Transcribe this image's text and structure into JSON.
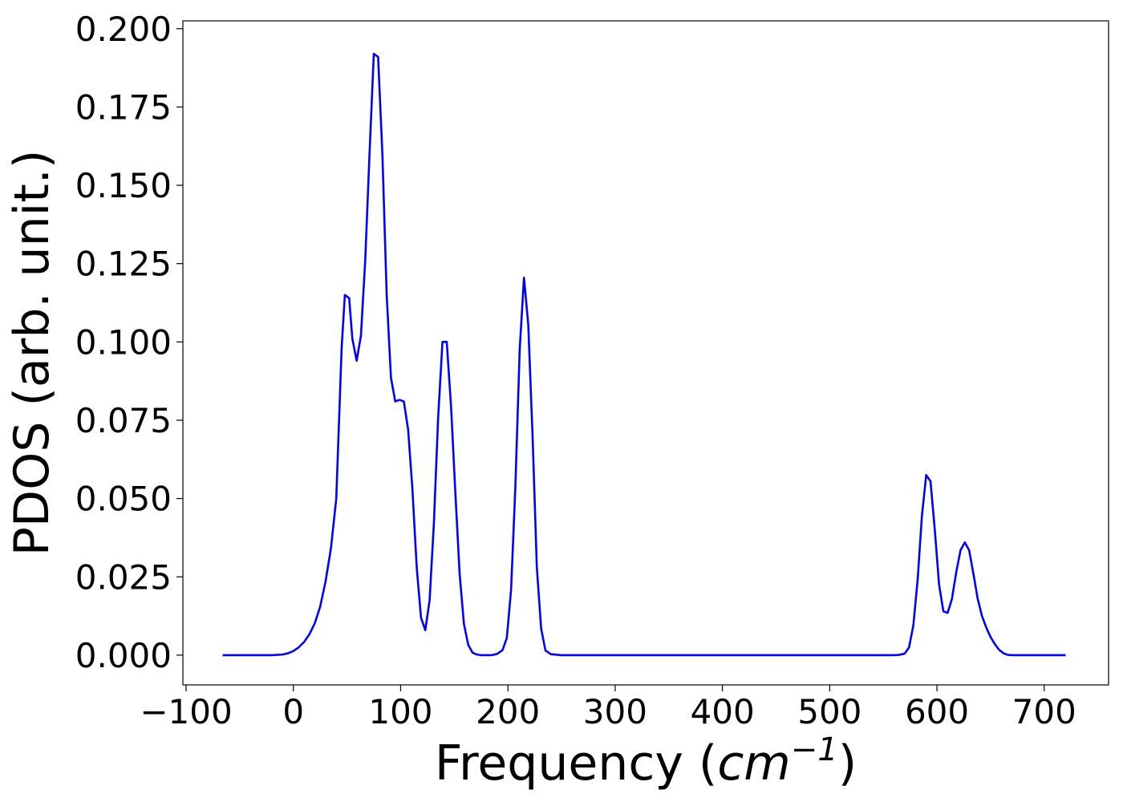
{
  "chart_data": {
    "type": "line",
    "title": "",
    "xlabel": "Frequency",
    "xlabel_unit_base": "cm",
    "xlabel_unit_exp": "−1",
    "ylabel": "PDOS (arb. unit.)",
    "xlim": [
      -103,
      760
    ],
    "ylim": [
      -0.0095,
      0.2025
    ],
    "xticks": [
      -100,
      0,
      100,
      200,
      300,
      400,
      500,
      600,
      700
    ],
    "xtick_labels": [
      "−100",
      "0",
      "100",
      "200",
      "300",
      "400",
      "500",
      "600",
      "700"
    ],
    "yticks": [
      0.0,
      0.025,
      0.05,
      0.075,
      0.1,
      0.125,
      0.15,
      0.175,
      0.2
    ],
    "ytick_labels": [
      "0.000",
      "0.025",
      "0.050",
      "0.075",
      "0.100",
      "0.125",
      "0.150",
      "0.175",
      "0.200"
    ],
    "grid": false,
    "legend": "none",
    "colors": {
      "line": "#0000ff",
      "axes": "#000000",
      "background": "#ffffff"
    },
    "series": [
      {
        "x": [
          -66,
          -40,
          -20,
          -10,
          -5,
          0,
          5,
          10,
          15,
          20,
          25,
          30,
          35,
          40,
          45,
          48,
          52,
          55,
          59,
          63,
          67,
          71,
          75,
          79,
          83,
          87,
          91,
          95,
          99,
          103,
          107,
          111,
          115,
          119,
          123,
          127,
          131,
          135,
          139,
          143,
          147,
          151,
          155,
          159,
          163,
          167,
          171,
          175,
          180,
          185,
          190,
          195,
          199,
          203,
          207,
          211,
          215,
          219,
          223,
          227,
          231,
          235,
          240,
          250,
          300,
          400,
          500,
          560,
          565,
          570,
          574,
          578,
          582,
          586,
          590,
          594,
          598,
          602,
          606,
          610,
          614,
          618,
          622,
          626,
          630,
          634,
          638,
          642,
          646,
          650,
          654,
          658,
          662,
          666,
          670,
          680,
          720
        ],
        "y": [
          0.0,
          0.0,
          0.0,
          0.0002,
          0.0006,
          0.0013,
          0.0025,
          0.0042,
          0.0067,
          0.0102,
          0.0155,
          0.0235,
          0.034,
          0.05,
          0.098,
          0.115,
          0.114,
          0.101,
          0.094,
          0.102,
          0.126,
          0.16,
          0.192,
          0.191,
          0.16,
          0.115,
          0.0885,
          0.081,
          0.0815,
          0.081,
          0.072,
          0.053,
          0.028,
          0.012,
          0.008,
          0.0175,
          0.042,
          0.076,
          0.1,
          0.1,
          0.0795,
          0.052,
          0.026,
          0.01,
          0.0033,
          0.0008,
          0.0002,
          0.0,
          0.0,
          0.0,
          0.0004,
          0.0016,
          0.0055,
          0.021,
          0.054,
          0.0975,
          0.1205,
          0.1055,
          0.07,
          0.028,
          0.0085,
          0.0015,
          0.0003,
          0.0,
          0.0,
          0.0,
          0.0,
          0.0,
          0.0001,
          0.0005,
          0.0025,
          0.0095,
          0.024,
          0.0445,
          0.0575,
          0.0555,
          0.04,
          0.0225,
          0.014,
          0.0135,
          0.018,
          0.0265,
          0.0335,
          0.036,
          0.0335,
          0.026,
          0.018,
          0.0125,
          0.0088,
          0.0058,
          0.0035,
          0.0017,
          0.0006,
          0.0001,
          0.0,
          0.0,
          0.0
        ]
      }
    ]
  }
}
